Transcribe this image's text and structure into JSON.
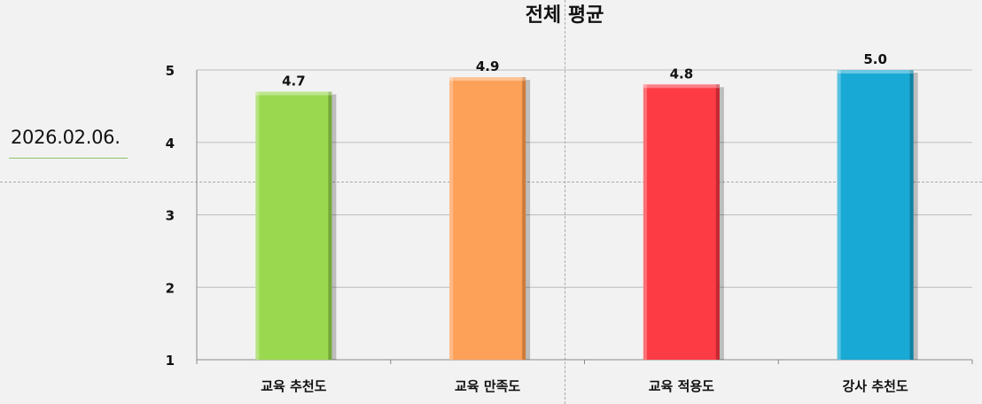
{
  "date_label": "2026.02.06.",
  "chart_data": {
    "type": "bar",
    "title": "전체 평균",
    "categories": [
      "교육 추천도",
      "교육 만족도",
      "교육 적용도",
      "강사 추천도"
    ],
    "values": [
      4.7,
      4.9,
      4.8,
      5.0
    ],
    "data_labels": [
      "4.7",
      "4.9",
      "4.8",
      "5.0"
    ],
    "ylim": [
      1,
      5
    ],
    "yticks": [
      1,
      2,
      3,
      4,
      5
    ],
    "grid": true,
    "bar_colors": [
      "#9ad94f",
      "#fda058",
      "#fd3b44",
      "#18a9d4"
    ],
    "bar_side_colors": [
      "#6f9f35",
      "#c57437",
      "#b8262e",
      "#117a99"
    ]
  }
}
